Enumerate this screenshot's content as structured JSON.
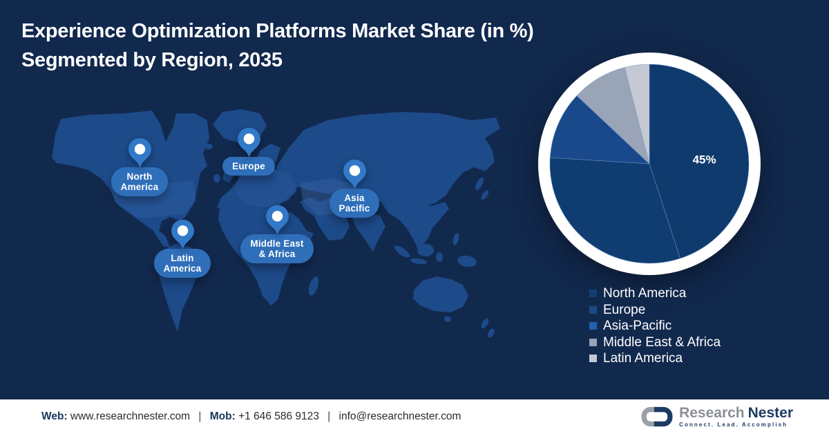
{
  "title": {
    "line1": "Experience Optimization Platforms Market Share (in %)",
    "line2": "Segmented by Region, 2035"
  },
  "map": {
    "pins": [
      {
        "id": "north-america",
        "line1": "North",
        "line2": "America"
      },
      {
        "id": "europe",
        "line1": "Europe",
        "line2": ""
      },
      {
        "id": "asia-pacific",
        "line1": "Asia",
        "line2": "Pacific"
      },
      {
        "id": "middle-east-africa",
        "line1": "Middle East",
        "line2": "& Africa"
      },
      {
        "id": "latin-america",
        "line1": "Latin",
        "line2": "America"
      }
    ]
  },
  "chart_data": {
    "type": "pie",
    "title": "Experience Optimization Platforms Market Share (in %) Segmented by Region, 2035",
    "labels": [
      "North America",
      "Europe",
      "Asia-Pacific",
      "Middle East & Africa",
      "Latin America"
    ],
    "values": [
      45,
      31,
      11,
      9,
      4
    ],
    "displayed_data_labels": [
      "45%",
      "",
      "",
      "",
      ""
    ],
    "note": "Only the North America slice is labeled (45%); other values estimated from slice angles.",
    "colors": [
      "#0E3A6D",
      "#0F3D72",
      "#19498B",
      "#9AA4B7",
      "#C4C9D3"
    ],
    "start_angle": "12 o'clock",
    "direction": "clockwise",
    "legend_position": "bottom-right"
  },
  "legend": {
    "items": [
      {
        "label": "North America",
        "color": "#123E74"
      },
      {
        "label": "Europe",
        "color": "#1A4A88"
      },
      {
        "label": "Asia-Pacific",
        "color": "#2361AC"
      },
      {
        "label": "Middle East & Africa",
        "color": "#97A2B5"
      },
      {
        "label": "Latin America",
        "color": "#C2C8D3"
      }
    ]
  },
  "footer": {
    "web_label": "Web:",
    "web_value": "www.researchnester.com",
    "separator": "|",
    "mob_label": "Mob:",
    "mob_value": "+1 646 586 9123",
    "email": "info@researchnester.com",
    "logo": {
      "brand_first": "Research",
      "brand_second": "Nester",
      "tagline": "Connect. Lead. Accomplish"
    }
  },
  "theme": {
    "background": "#12294E",
    "map_fill": "#1D4A89",
    "pin_fill": "#3279C8",
    "pin_dot": "#FFFFFF",
    "pill_fill": "#2F6FBA",
    "pill_text": "#FFFFFF",
    "ring": "#FFFFFF",
    "title_text": "#FFFFFF",
    "legend_text": "#FFFFFF",
    "footer_bg": "#FFFFFF",
    "footer_label": "#16365C",
    "footer_text": "#2B2B2B",
    "logo_gray": "#8B8F94",
    "logo_navy": "#1D3C64"
  }
}
